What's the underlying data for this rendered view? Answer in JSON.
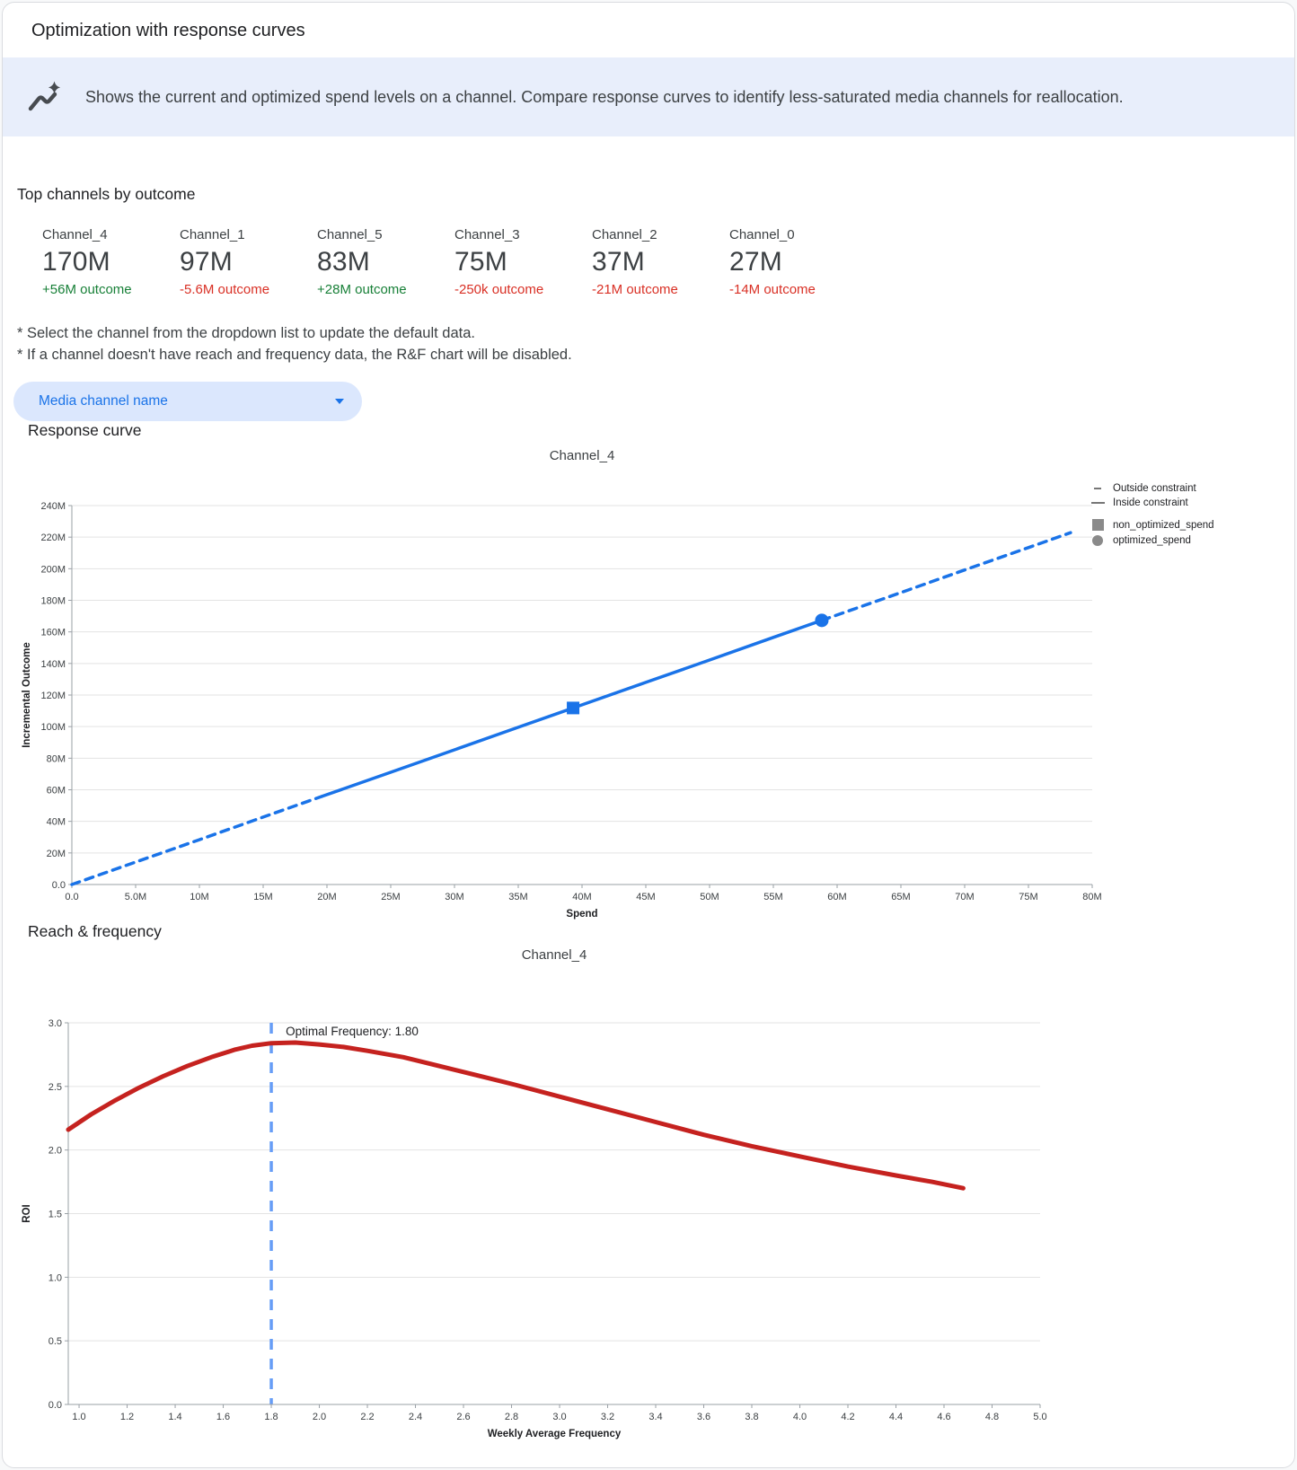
{
  "page": {
    "title": "Optimization with response curves"
  },
  "banner": {
    "icon": "insights-icon",
    "text": "Shows the current and optimized spend levels on a channel. Compare response curves to identify less-saturated media channels for reallocation."
  },
  "top_channels": {
    "heading": "Top channels by outcome",
    "channels": [
      {
        "name": "Channel_4",
        "value": "170M",
        "outcome": "+56M outcome",
        "direction": "positive"
      },
      {
        "name": "Channel_1",
        "value": "97M",
        "outcome": "-5.6M outcome",
        "direction": "negative"
      },
      {
        "name": "Channel_5",
        "value": "83M",
        "outcome": "+28M outcome",
        "direction": "positive"
      },
      {
        "name": "Channel_3",
        "value": "75M",
        "outcome": "-250k outcome",
        "direction": "negative"
      },
      {
        "name": "Channel_2",
        "value": "37M",
        "outcome": "-21M outcome",
        "direction": "negative"
      },
      {
        "name": "Channel_0",
        "value": "27M",
        "outcome": "-14M outcome",
        "direction": "negative"
      }
    ]
  },
  "notes": [
    "* Select the channel from the dropdown list to update the default data.",
    "* If a channel doesn't have reach and frequency data, the R&F chart will be disabled."
  ],
  "dropdown": {
    "label": "Media channel name"
  },
  "colors": {
    "positive": "#188038",
    "negative": "#d93025",
    "accent_blue": "#1a73e8",
    "pill_bg": "#dbe7fd",
    "banner_bg": "#e8eefb",
    "line_red": "#c5221f",
    "optimal_line": "#669df6"
  },
  "chart_data": [
    {
      "id": "response",
      "type": "line",
      "section_heading": "Response curve",
      "title": "Channel_4",
      "xlabel": "Spend",
      "ylabel": "Incremental Outcome",
      "value_unit": "millions",
      "xlim": [
        0,
        80
      ],
      "ylim": [
        0,
        240
      ],
      "x_ticks": {
        "values": [
          0,
          5,
          10,
          15,
          20,
          25,
          30,
          35,
          40,
          45,
          50,
          55,
          60,
          65,
          70,
          75,
          80
        ],
        "labels": [
          "0.0",
          "5.0M",
          "10M",
          "15M",
          "20M",
          "25M",
          "30M",
          "35M",
          "40M",
          "45M",
          "50M",
          "55M",
          "60M",
          "65M",
          "70M",
          "75M",
          "80M"
        ]
      },
      "y_ticks": {
        "values": [
          0,
          20,
          40,
          60,
          80,
          100,
          120,
          140,
          160,
          180,
          200,
          220,
          240
        ],
        "labels": [
          "0.0",
          "20M",
          "40M",
          "60M",
          "80M",
          "100M",
          "120M",
          "140M",
          "160M",
          "180M",
          "200M",
          "220M",
          "240M"
        ]
      },
      "color": "#1a73e8",
      "stroke_width": 3.5,
      "segments": [
        {
          "name": "outside_constraint_lower",
          "style": "dashed",
          "points": [
            [
              0,
              0
            ],
            [
              5,
              14.2
            ],
            [
              10,
              28.4
            ],
            [
              15,
              42.7
            ],
            [
              19.6,
              55.8
            ]
          ]
        },
        {
          "name": "inside_constraint",
          "style": "solid",
          "points": [
            [
              19.6,
              55.8
            ],
            [
              25,
              71.1
            ],
            [
              30,
              85.3
            ],
            [
              35,
              99.6
            ],
            [
              39.3,
              111.8
            ],
            [
              45,
              128.0
            ],
            [
              50,
              142.2
            ],
            [
              55,
              156.5
            ],
            [
              58.8,
              167.3
            ]
          ]
        },
        {
          "name": "outside_constraint_upper",
          "style": "dashed",
          "points": [
            [
              58.8,
              167.3
            ],
            [
              65,
              184.9
            ],
            [
              70,
              199.2
            ],
            [
              75,
              213.4
            ],
            [
              78.3,
              222.8
            ]
          ]
        }
      ],
      "markers": [
        {
          "label": "non_optimized_spend",
          "shape": "square",
          "x": 39.3,
          "y": 111.8
        },
        {
          "label": "optimized_spend",
          "shape": "circle",
          "x": 58.8,
          "y": 167.3
        }
      ],
      "legend": [
        {
          "label": "Outside constraint",
          "marker": "dash"
        },
        {
          "label": "Inside constraint",
          "marker": "line"
        },
        {
          "label": "non_optimized_spend",
          "marker": "square"
        },
        {
          "label": "optimized_spend",
          "marker": "circle"
        }
      ]
    },
    {
      "id": "rf",
      "type": "line",
      "section_heading": "Reach & frequency",
      "title": "Channel_4",
      "xlabel": "Weekly Average Frequency",
      "ylabel": "ROI",
      "xlim": [
        0.955,
        5.0
      ],
      "ylim": [
        0,
        3
      ],
      "x_ticks": {
        "values": [
          1,
          1.2,
          1.4,
          1.6,
          1.8,
          2,
          2.2,
          2.4,
          2.6,
          2.8,
          3,
          3.2,
          3.4,
          3.6,
          3.8,
          4,
          4.2,
          4.4,
          4.6,
          4.8,
          5
        ],
        "labels": [
          "1.0",
          "1.2",
          "1.4",
          "1.6",
          "1.8",
          "2.0",
          "2.2",
          "2.4",
          "2.6",
          "2.8",
          "3.0",
          "3.2",
          "3.4",
          "3.6",
          "3.8",
          "4.0",
          "4.2",
          "4.4",
          "4.6",
          "4.8",
          "5.0"
        ]
      },
      "y_ticks": {
        "values": [
          0,
          0.5,
          1,
          1.5,
          2,
          2.5,
          3
        ],
        "labels": [
          "0.0",
          "0.5",
          "1.0",
          "1.5",
          "2.0",
          "2.5",
          "3.0"
        ]
      },
      "color": "#c5221f",
      "stroke_width": 5,
      "optimal_frequency": {
        "value": 1.8,
        "label": "Optimal Frequency: 1.80",
        "line_color": "#669df6",
        "label_x": 1.86,
        "label_y": 2.9
      },
      "segments": [
        {
          "name": "roi_curve",
          "style": "solid",
          "points": [
            [
              0.955,
              2.16
            ],
            [
              1.05,
              2.28
            ],
            [
              1.15,
              2.39
            ],
            [
              1.25,
              2.49
            ],
            [
              1.35,
              2.58
            ],
            [
              1.45,
              2.66
            ],
            [
              1.55,
              2.73
            ],
            [
              1.65,
              2.79
            ],
            [
              1.72,
              2.82
            ],
            [
              1.8,
              2.84
            ],
            [
              1.9,
              2.845
            ],
            [
              2.0,
              2.83
            ],
            [
              2.1,
              2.81
            ],
            [
              2.2,
              2.78
            ],
            [
              2.35,
              2.73
            ],
            [
              2.5,
              2.66
            ],
            [
              2.65,
              2.59
            ],
            [
              2.8,
              2.52
            ],
            [
              3.0,
              2.42
            ],
            [
              3.2,
              2.32
            ],
            [
              3.4,
              2.22
            ],
            [
              3.6,
              2.12
            ],
            [
              3.8,
              2.03
            ],
            [
              4.0,
              1.95
            ],
            [
              4.2,
              1.87
            ],
            [
              4.4,
              1.8
            ],
            [
              4.55,
              1.75
            ],
            [
              4.68,
              1.7
            ]
          ]
        }
      ],
      "markers": [],
      "legend": []
    }
  ]
}
